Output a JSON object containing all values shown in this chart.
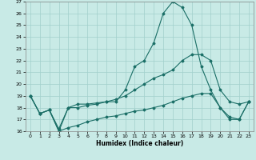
{
  "xlabel": "Humidex (Indice chaleur)",
  "bg_color": "#c8eae6",
  "grid_color": "#a0d0cc",
  "line_color": "#1a6e66",
  "xlim": [
    -0.5,
    23.5
  ],
  "ylim": [
    16,
    27
  ],
  "yticks": [
    16,
    17,
    18,
    19,
    20,
    21,
    22,
    23,
    24,
    25,
    26,
    27
  ],
  "xticks": [
    0,
    1,
    2,
    3,
    4,
    5,
    6,
    7,
    8,
    9,
    10,
    11,
    12,
    13,
    14,
    15,
    16,
    17,
    18,
    19,
    20,
    21,
    22,
    23
  ],
  "line1_x": [
    0,
    1,
    2,
    3,
    4,
    5,
    6,
    7,
    8,
    9,
    10,
    11,
    12,
    13,
    14,
    15,
    16,
    17,
    18,
    19,
    20,
    21,
    22,
    23
  ],
  "line1_y": [
    19.0,
    17.5,
    17.8,
    16.0,
    18.0,
    18.3,
    18.3,
    18.4,
    18.5,
    18.5,
    19.5,
    21.5,
    22.0,
    23.5,
    26.0,
    27.0,
    26.5,
    25.0,
    21.5,
    19.5,
    18.0,
    17.0,
    17.0,
    18.5
  ],
  "line2_x": [
    0,
    1,
    2,
    3,
    4,
    5,
    6,
    7,
    8,
    9,
    10,
    11,
    12,
    13,
    14,
    15,
    16,
    17,
    18,
    19,
    20,
    21,
    22,
    23
  ],
  "line2_y": [
    19.0,
    17.5,
    17.8,
    16.2,
    18.0,
    18.0,
    18.2,
    18.3,
    18.5,
    18.7,
    19.0,
    19.5,
    20.0,
    20.5,
    20.8,
    21.2,
    22.0,
    22.5,
    22.5,
    22.0,
    19.5,
    18.5,
    18.3,
    18.5
  ],
  "line3_x": [
    0,
    1,
    2,
    3,
    4,
    5,
    6,
    7,
    8,
    9,
    10,
    11,
    12,
    13,
    14,
    15,
    16,
    17,
    18,
    19,
    20,
    21,
    22,
    23
  ],
  "line3_y": [
    19.0,
    17.5,
    17.8,
    16.0,
    16.3,
    16.5,
    16.8,
    17.0,
    17.2,
    17.3,
    17.5,
    17.7,
    17.8,
    18.0,
    18.2,
    18.5,
    18.8,
    19.0,
    19.2,
    19.2,
    18.0,
    17.2,
    17.0,
    18.5
  ]
}
